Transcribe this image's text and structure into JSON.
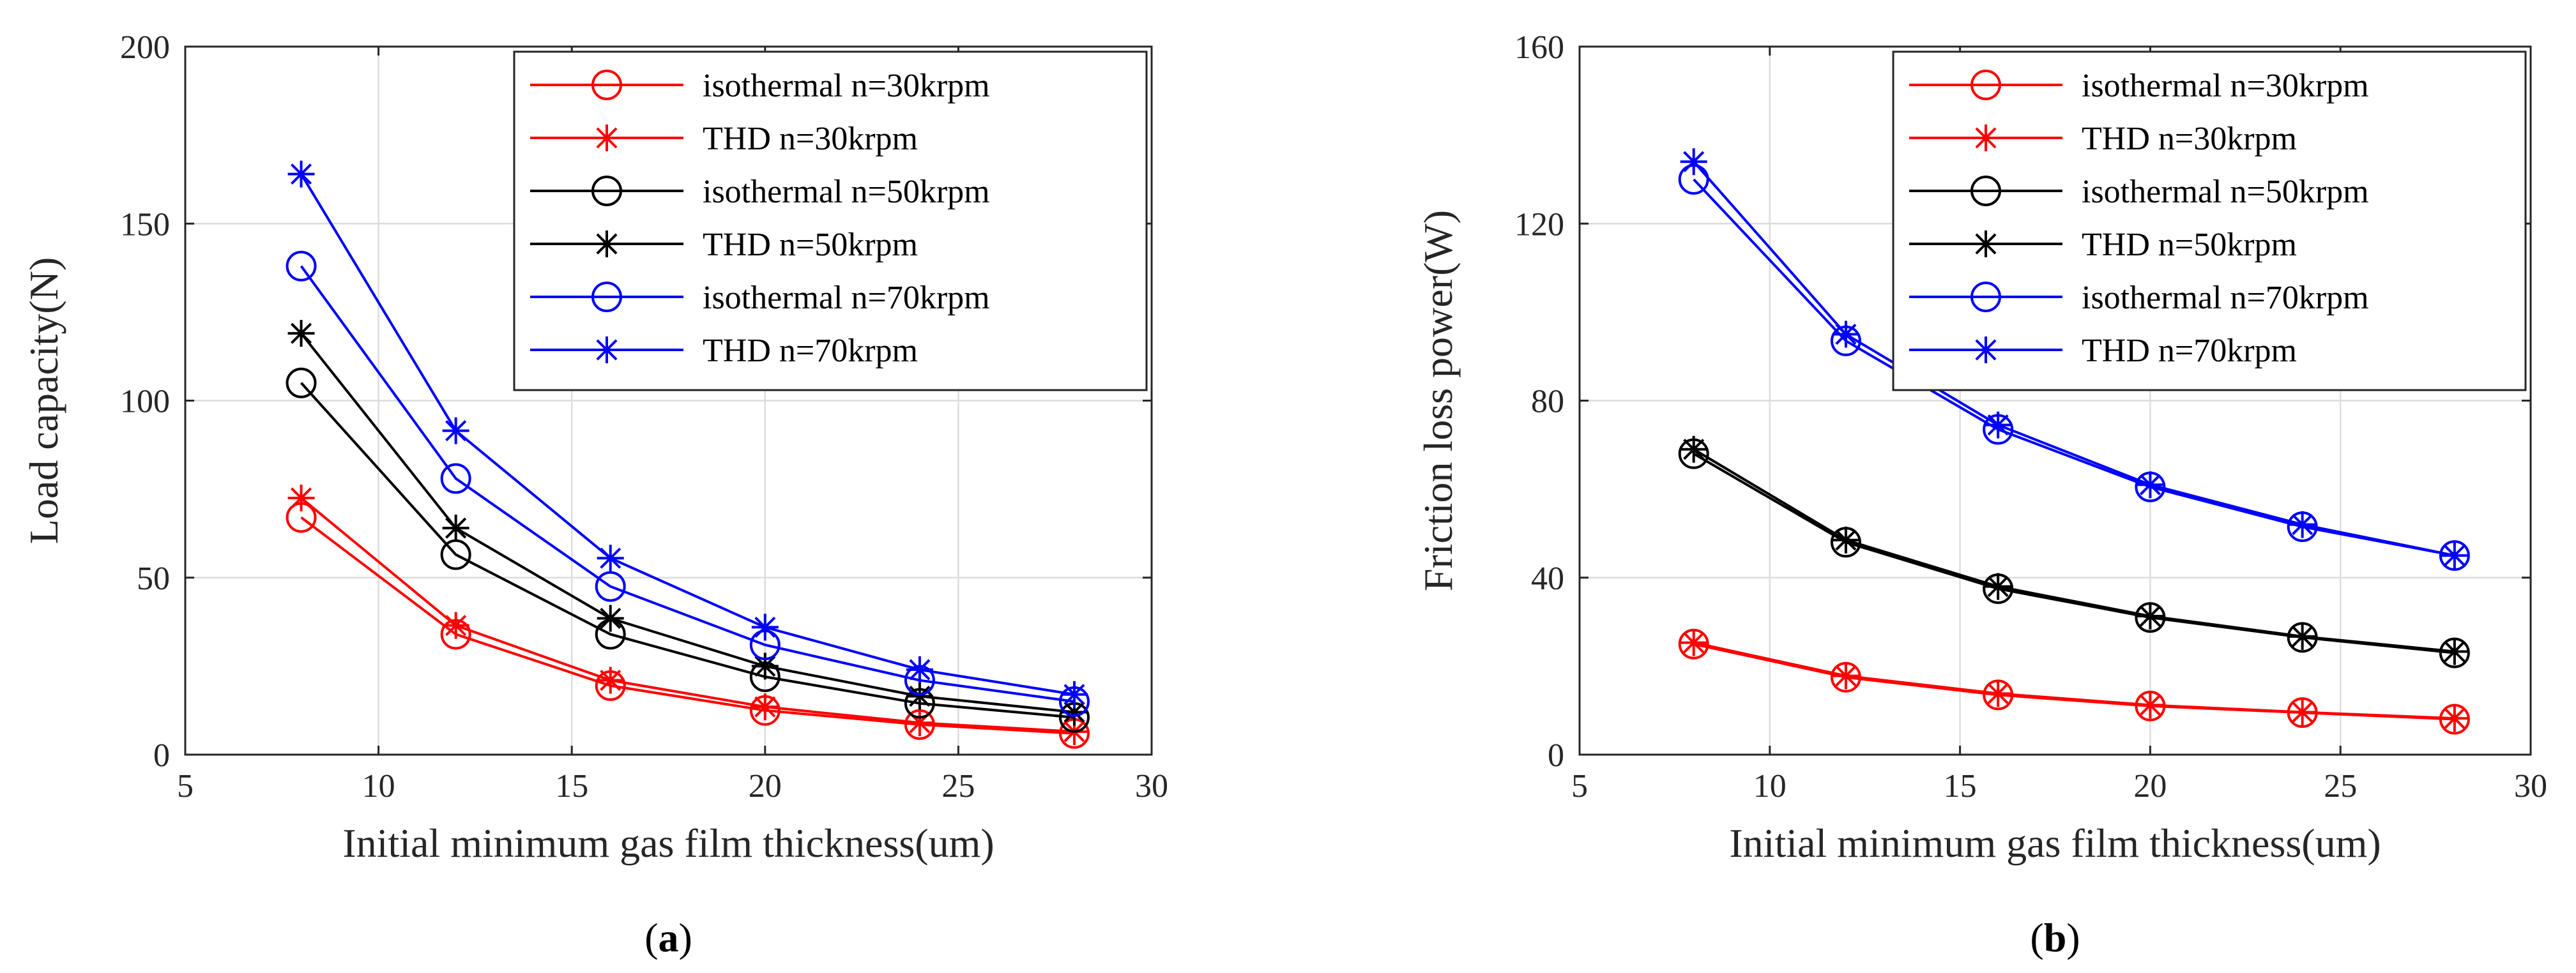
{
  "chart_data": [
    {
      "type": "line",
      "panel_label": "a",
      "xlabel": "Initial minimum gas film thickness(um)",
      "ylabel": "Load capacity(N)",
      "xlim": [
        5,
        30
      ],
      "ylim": [
        0,
        200
      ],
      "xticks": [
        5,
        10,
        15,
        20,
        25,
        30
      ],
      "yticks": [
        0,
        50,
        100,
        150,
        200
      ],
      "grid": true,
      "legend_position": "top-right",
      "x": [
        8,
        12,
        16,
        20,
        24,
        28
      ],
      "series": [
        {
          "name": "isothermal n=30krpm",
          "color": "#ff0000",
          "marker": "circle",
          "values": [
            67,
            34,
            19.5,
            12.5,
            8.5,
            6
          ]
        },
        {
          "name": "THD n=30krpm",
          "color": "#ff0000",
          "marker": "asterisk",
          "values": [
            72.5,
            36.5,
            21,
            13.5,
            9,
            6.5
          ]
        },
        {
          "name": "isothermal n=50krpm",
          "color": "#000000",
          "marker": "circle",
          "values": [
            105,
            56.5,
            34,
            22,
            14.5,
            10.5
          ]
        },
        {
          "name": "THD n=50krpm",
          "color": "#000000",
          "marker": "asterisk",
          "values": [
            119,
            64,
            38.5,
            25,
            16.5,
            12
          ]
        },
        {
          "name": "isothermal n=70krpm",
          "color": "#0000ff",
          "marker": "circle",
          "values": [
            138,
            78,
            47.5,
            31,
            21,
            15
          ]
        },
        {
          "name": "THD n=70krpm",
          "color": "#0000ff",
          "marker": "asterisk",
          "values": [
            164,
            91.5,
            55.5,
            36,
            24,
            17
          ]
        }
      ]
    },
    {
      "type": "line",
      "panel_label": "b",
      "xlabel": "Initial minimum gas film thickness(um)",
      "ylabel": "Friction loss power(W)",
      "xlim": [
        5,
        30
      ],
      "ylim": [
        0,
        160
      ],
      "xticks": [
        5,
        10,
        15,
        20,
        25,
        30
      ],
      "yticks": [
        0,
        40,
        80,
        120,
        160
      ],
      "grid": true,
      "legend_position": "top-right",
      "x": [
        8,
        12,
        16,
        20,
        24,
        28
      ],
      "series": [
        {
          "name": "isothermal n=30krpm",
          "color": "#ff0000",
          "marker": "circle",
          "values": [
            25,
            17.5,
            13.5,
            11,
            9.5,
            8
          ]
        },
        {
          "name": "THD n=30krpm",
          "color": "#ff0000",
          "marker": "asterisk",
          "values": [
            25.3,
            17.8,
            13.8,
            11.2,
            9.6,
            8.2
          ]
        },
        {
          "name": "isothermal n=50krpm",
          "color": "#000000",
          "marker": "circle",
          "values": [
            68,
            48,
            37.5,
            31,
            26.5,
            23
          ]
        },
        {
          "name": "THD n=50krpm",
          "color": "#000000",
          "marker": "asterisk",
          "values": [
            69,
            48.5,
            38,
            31.3,
            26.7,
            23.3
          ]
        },
        {
          "name": "isothermal n=70krpm",
          "color": "#0000ff",
          "marker": "circle",
          "values": [
            130,
            93.5,
            73.5,
            60.5,
            51.5,
            45
          ]
        },
        {
          "name": "THD n=70krpm",
          "color": "#0000ff",
          "marker": "asterisk",
          "values": [
            134,
            95,
            74.5,
            61,
            52,
            45
          ]
        }
      ]
    }
  ]
}
